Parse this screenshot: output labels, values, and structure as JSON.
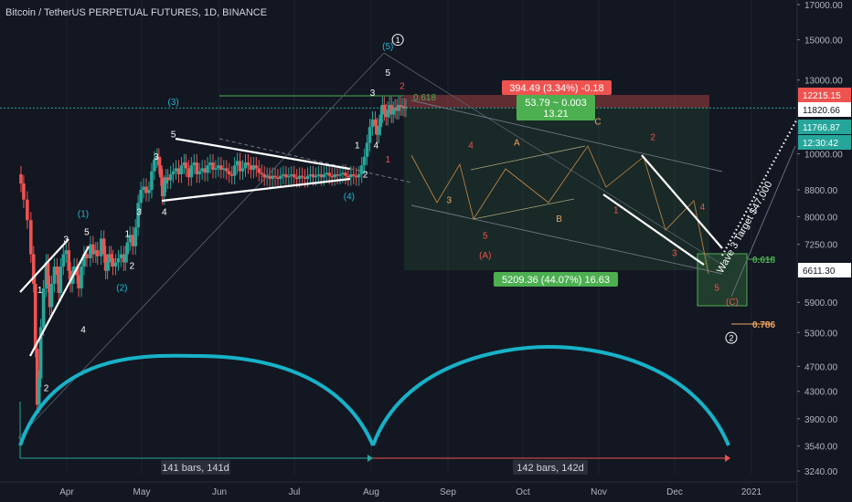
{
  "header": {
    "title": "Bitcoin / TetherUS PERPETUAL FUTURES, 1D, BINANCE"
  },
  "colors": {
    "background": "#131722",
    "up": "#26a69a",
    "down": "#ef5350",
    "text": "#d1d4dc",
    "count_red": "#ef5350",
    "count_orange": "#f0a35e",
    "count_cyan": "#22b8cf",
    "cycle": "#17b2c8",
    "fib_green": "#4caf50",
    "axis_bg": "#131722"
  },
  "chart_data": {
    "type": "candlestick",
    "title": "Bitcoin / TetherUS PERPETUAL FUTURES, 1D, BINANCE",
    "scale": "log",
    "ylim": [
      3240,
      17000
    ],
    "x_ticks": [
      "Apr",
      "May",
      "Jun",
      "Jul",
      "Aug",
      "Sep",
      "Oct",
      "Nov",
      "Dec",
      "2021"
    ],
    "y_ticks": [
      17000,
      15000,
      13000,
      10000,
      8800,
      8000,
      7250,
      5900,
      5300,
      4700,
      4300,
      3900,
      3540,
      3240
    ],
    "price_labels": [
      {
        "text": "12215.15",
        "value": 12215.15,
        "style": "red"
      },
      {
        "text": "11820.66",
        "value": 11820.66,
        "style": "white"
      },
      {
        "text": "11766.87",
        "value": 11766.87,
        "style": "green"
      },
      {
        "text": "12:30:42",
        "value": 11000,
        "style": "green"
      },
      {
        "text": "6611.30",
        "value": 6611.3,
        "style": "white"
      }
    ],
    "price_path": [
      [
        0,
        9300
      ],
      [
        3,
        9000
      ],
      [
        6,
        8500
      ],
      [
        10,
        7900
      ],
      [
        14,
        7000
      ],
      [
        17,
        6300
      ],
      [
        19,
        5000
      ],
      [
        21,
        4100
      ],
      [
        23,
        4500
      ],
      [
        25,
        5400
      ],
      [
        28,
        6200
      ],
      [
        31,
        6800
      ],
      [
        33,
        6300
      ],
      [
        35,
        5800
      ],
      [
        37,
        6300
      ],
      [
        40,
        6700
      ],
      [
        43,
        6500
      ],
      [
        45,
        6100
      ],
      [
        47,
        6700
      ],
      [
        50,
        7000
      ],
      [
        53,
        7100
      ],
      [
        56,
        6600
      ],
      [
        58,
        6300
      ],
      [
        60,
        6500
      ],
      [
        62,
        6700
      ],
      [
        65,
        6500
      ],
      [
        67,
        6200
      ],
      [
        70,
        6700
      ],
      [
        73,
        7000
      ],
      [
        76,
        6900
      ],
      [
        80,
        7250
      ],
      [
        83,
        7000
      ],
      [
        86,
        7100
      ],
      [
        88,
        6950
      ],
      [
        92,
        7400
      ],
      [
        95,
        7000
      ],
      [
        97,
        6600
      ],
      [
        99,
        6800
      ],
      [
        101,
        7000
      ],
      [
        103,
        6900
      ],
      [
        105,
        6700
      ],
      [
        108,
        6800
      ],
      [
        111,
        6900
      ],
      [
        114,
        7000
      ],
      [
        117,
        6800
      ],
      [
        119,
        7000
      ],
      [
        121,
        7300
      ],
      [
        124,
        7500
      ],
      [
        127,
        7200
      ],
      [
        130,
        7700
      ],
      [
        133,
        8400
      ],
      [
        136,
        8800
      ],
      [
        139,
        8900
      ],
      [
        142,
        8700
      ],
      [
        145,
        8800
      ],
      [
        148,
        9400
      ],
      [
        151,
        9800
      ],
      [
        154,
        9900
      ],
      [
        156,
        9600
      ],
      [
        158,
        9200
      ],
      [
        160,
        8600
      ],
      [
        162,
        9000
      ],
      [
        164,
        9200
      ],
      [
        166,
        9100
      ],
      [
        169,
        9300
      ],
      [
        172,
        9400
      ],
      [
        175,
        9500
      ],
      [
        178,
        9300
      ],
      [
        181,
        9600
      ],
      [
        184,
        9700
      ],
      [
        186,
        9500
      ],
      [
        189,
        9200
      ],
      [
        192,
        9600
      ],
      [
        195,
        9700
      ],
      [
        198,
        9300
      ],
      [
        201,
        9400
      ],
      [
        204,
        9500
      ],
      [
        207,
        9350
      ],
      [
        210,
        9600
      ],
      [
        213,
        9700
      ],
      [
        216,
        9450
      ],
      [
        219,
        9500
      ],
      [
        222,
        9600
      ],
      [
        225,
        9450
      ],
      [
        228,
        9500
      ],
      [
        231,
        9400
      ],
      [
        234,
        9300
      ],
      [
        237,
        9250
      ],
      [
        240,
        9600
      ],
      [
        243,
        9750
      ],
      [
        246,
        9400
      ],
      [
        249,
        9500
      ],
      [
        252,
        9700
      ],
      [
        255,
        9600
      ],
      [
        258,
        9450
      ],
      [
        261,
        9600
      ],
      [
        264,
        9500
      ],
      [
        267,
        9350
      ],
      [
        270,
        9300
      ],
      [
        273,
        9200
      ],
      [
        276,
        9250
      ],
      [
        279,
        9150
      ],
      [
        282,
        9250
      ],
      [
        285,
        9200
      ],
      [
        288,
        9150
      ],
      [
        291,
        9250
      ],
      [
        294,
        9300
      ],
      [
        297,
        9200
      ],
      [
        300,
        9250
      ],
      [
        303,
        9300
      ],
      [
        306,
        9200
      ],
      [
        309,
        9150
      ],
      [
        312,
        9250
      ],
      [
        315,
        9200
      ],
      [
        318,
        9150
      ],
      [
        321,
        9250
      ],
      [
        324,
        9300
      ],
      [
        327,
        9200
      ],
      [
        330,
        9250
      ],
      [
        333,
        9300
      ],
      [
        336,
        9200
      ],
      [
        339,
        9300
      ],
      [
        342,
        9350
      ],
      [
        345,
        9250
      ],
      [
        348,
        9200
      ],
      [
        351,
        9300
      ],
      [
        354,
        9250
      ],
      [
        357,
        9300
      ],
      [
        360,
        9350
      ],
      [
        363,
        9250
      ],
      [
        366,
        9200
      ],
      [
        369,
        9300
      ],
      [
        372,
        9250
      ],
      [
        375,
        9200
      ],
      [
        378,
        9300
      ],
      [
        381,
        9600
      ],
      [
        384,
        9900
      ],
      [
        387,
        10400
      ],
      [
        390,
        11000
      ],
      [
        393,
        11300
      ],
      [
        396,
        11050
      ],
      [
        398,
        10700
      ],
      [
        400,
        11000
      ],
      [
        402,
        11500
      ],
      [
        404,
        11900
      ],
      [
        406,
        11600
      ],
      [
        408,
        11400
      ],
      [
        410,
        11700
      ],
      [
        412,
        11900
      ],
      [
        414,
        11500
      ],
      [
        416,
        11700
      ],
      [
        418,
        11800
      ],
      [
        420,
        11650
      ],
      [
        422,
        11900
      ],
      [
        424,
        11800
      ],
      [
        426,
        11850
      ],
      [
        428,
        11750
      ],
      [
        430,
        11800
      ]
    ],
    "wave_labels": [
      {
        "text": "1",
        "x": 24,
        "y": 6100,
        "color": "white"
      },
      {
        "text": "2",
        "x": 31,
        "y": 4300,
        "color": "white"
      },
      {
        "text": "3",
        "x": 53,
        "y": 7300,
        "color": "white"
      },
      {
        "text": "4",
        "x": 72,
        "y": 5300,
        "color": "white"
      },
      {
        "text": "5",
        "x": 76,
        "y": 7500,
        "color": "white"
      },
      {
        "text": "(1)",
        "x": 72,
        "y": 8000,
        "color": "cyan"
      },
      {
        "text": "(2)",
        "x": 115,
        "y": 6150,
        "color": "cyan"
      },
      {
        "text": "1",
        "x": 121,
        "y": 7450,
        "color": "white"
      },
      {
        "text": "2",
        "x": 126,
        "y": 6650,
        "color": "white"
      },
      {
        "text": "3",
        "x": 134,
        "y": 8050,
        "color": "white"
      },
      {
        "text": "4",
        "x": 162,
        "y": 8050,
        "color": "white"
      },
      {
        "text": "5",
        "x": 172,
        "y": 10600,
        "color": "white"
      },
      {
        "text": "(3)",
        "x": 172,
        "y": 11900,
        "color": "cyan"
      },
      {
        "text": "3",
        "x": 153,
        "y": 9800,
        "color": "white"
      },
      {
        "text": "(4)",
        "x": 367,
        "y": 8500,
        "color": "cyan"
      },
      {
        "text": "1",
        "x": 376,
        "y": 10200,
        "color": "white"
      },
      {
        "text": "2",
        "x": 385,
        "y": 9200,
        "color": "white"
      },
      {
        "text": "3",
        "x": 393,
        "y": 12300,
        "color": "white"
      },
      {
        "text": "4",
        "x": 397,
        "y": 10200,
        "color": "white"
      },
      {
        "text": "5",
        "x": 410,
        "y": 13200,
        "color": "white"
      },
      {
        "text": "(5)",
        "x": 410,
        "y": 14500,
        "color": "cyan"
      },
      {
        "text": "2",
        "x": 426,
        "y": 12600,
        "color": "red"
      },
      {
        "text": "1",
        "x": 410,
        "y": 9700,
        "color": "red"
      },
      {
        "text": "4",
        "x": 502,
        "y": 10200,
        "color": "red"
      },
      {
        "text": "3",
        "x": 478,
        "y": 8400,
        "color": "orange"
      },
      {
        "text": "5",
        "x": 518,
        "y": 7400,
        "color": "red"
      },
      {
        "text": "(A)",
        "x": 518,
        "y": 6900,
        "color": "red"
      },
      {
        "text": "A",
        "x": 553,
        "y": 10300,
        "color": "orange"
      },
      {
        "text": "B",
        "x": 600,
        "y": 7850,
        "color": "orange"
      },
      {
        "text": "C",
        "x": 643,
        "y": 11100,
        "color": "orange"
      },
      {
        "text": "2",
        "x": 704,
        "y": 10500,
        "color": "red"
      },
      {
        "text": "1",
        "x": 663,
        "y": 8100,
        "color": "red"
      },
      {
        "text": "4",
        "x": 759,
        "y": 8200,
        "color": "red"
      },
      {
        "text": "3",
        "x": 728,
        "y": 6950,
        "color": "red"
      },
      {
        "text": "5",
        "x": 775,
        "y": 6150,
        "color": "red"
      },
      {
        "text": "(C)",
        "x": 792,
        "y": 5850,
        "color": "red"
      }
    ],
    "circled_labels": [
      {
        "text": "1",
        "x": 421,
        "y": 15000
      },
      {
        "text": "2",
        "x": 791,
        "y": 5200
      }
    ],
    "annotations": {
      "box_top_label": "394.49 (3.34%) -0.18",
      "box_top_inner_1": "53.79 ~ 0.003",
      "box_top_inner_2": "13.21",
      "box_main_label": "5209.36 (44.07%) 16.63",
      "fib_top": "0.618",
      "fib_618": "0.618",
      "fib_786": "0.786",
      "target_text": "Wave 3 Target $47,000",
      "range_left": "141 bars, 141d",
      "range_right": "142 bars, 142d"
    }
  }
}
